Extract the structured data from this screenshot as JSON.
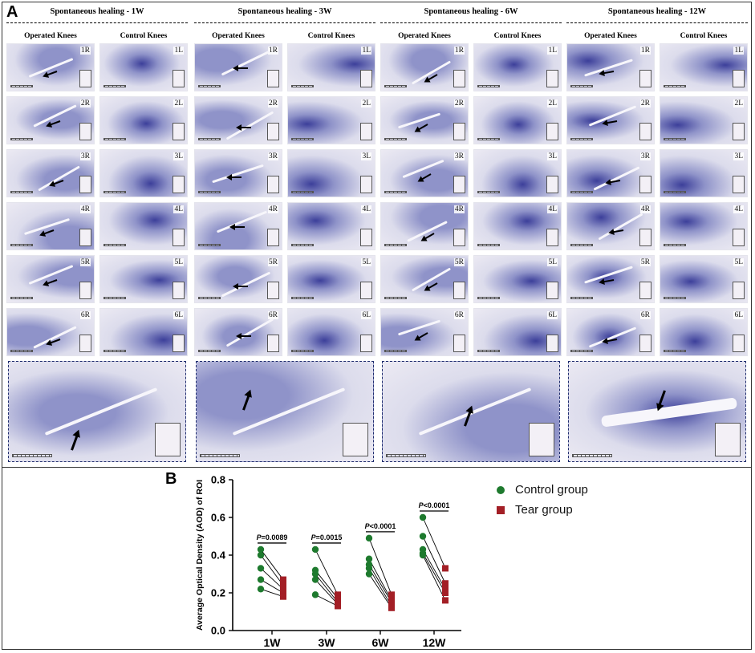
{
  "panel_a": {
    "letter": "A",
    "groups": [
      {
        "title": "Spontaneous healing - 1W",
        "operated_label": "Operated Knees",
        "control_label": "Control Knees"
      },
      {
        "title": "Spontaneous healing - 3W",
        "operated_label": "Operated Knees",
        "control_label": "Control Knees"
      },
      {
        "title": "Spontaneous healing - 6W",
        "operated_label": "Operated Knees",
        "control_label": "Control Knees"
      },
      {
        "title": "Spontaneous healing - 12W",
        "operated_label": "Operated Knees",
        "control_label": "Control Knees"
      }
    ],
    "operated_labels": [
      "1R",
      "2R",
      "3R",
      "4R",
      "5R",
      "6R"
    ],
    "control_labels": [
      "1L",
      "2L",
      "3L",
      "4L",
      "5L",
      "6L"
    ],
    "stain_colors": {
      "light": "#dcdcec",
      "mid": "#8f93c9",
      "dark": "#3c3f9a",
      "bg": "#eceaf3"
    }
  },
  "panel_b": {
    "letter": "B",
    "chart_data": {
      "type": "scatter",
      "ylabel": "Average Optical Density (AOD) of ROI",
      "xlabel": "",
      "categories": [
        "1W",
        "3W",
        "6W",
        "12W"
      ],
      "ylim": [
        0.0,
        0.8
      ],
      "yticks": [
        "0.0",
        "0.2",
        "0.4",
        "0.6",
        "0.8"
      ],
      "series": [
        {
          "name": "Control group",
          "color": "#1e7a2e",
          "marker": "circle",
          "values": [
            [
              0.43,
              0.4,
              0.33,
              0.27,
              0.22
            ],
            [
              0.43,
              0.32,
              0.3,
              0.27,
              0.19
            ],
            [
              0.49,
              0.38,
              0.35,
              0.33,
              0.3
            ],
            [
              0.6,
              0.5,
              0.43,
              0.41,
              0.4
            ]
          ]
        },
        {
          "name": "Tear group",
          "color": "#a31f26",
          "marker": "square",
          "values": [
            [
              0.27,
              0.24,
              0.22,
              0.2,
              0.18
            ],
            [
              0.19,
              0.17,
              0.15,
              0.14,
              0.13
            ],
            [
              0.19,
              0.16,
              0.15,
              0.13,
              0.12
            ],
            [
              0.33,
              0.25,
              0.22,
              0.2,
              0.16
            ]
          ]
        }
      ],
      "annotations": [
        {
          "category": "1W",
          "italic": "P",
          "text": "=0.0089"
        },
        {
          "category": "3W",
          "italic": "P",
          "text": "=0.0015"
        },
        {
          "category": "6W",
          "italic": "P",
          "text": "<0.0001"
        },
        {
          "category": "12W",
          "italic": "P",
          "text": "<0.0001"
        }
      ],
      "legend_placement": "right",
      "grid": false
    }
  }
}
